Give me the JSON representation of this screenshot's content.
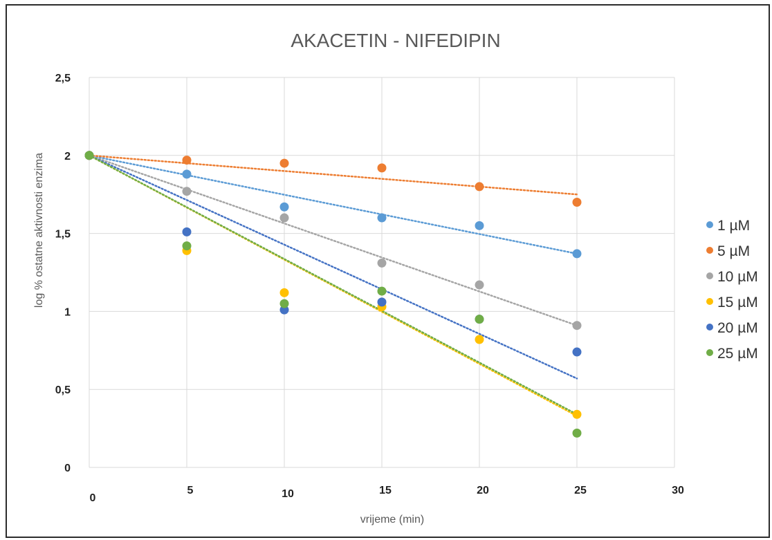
{
  "chart_data": {
    "type": "scatter",
    "title": "AKACETIN - NIFEDIPIN",
    "xlabel": "vrijeme (min)",
    "ylabel": "log % ostatne aktivnosti enzima",
    "xlim": [
      0,
      30
    ],
    "ylim": [
      0,
      2.5
    ],
    "x_ticks": [
      "0",
      "5",
      "10",
      "15",
      "20",
      "25",
      "30"
    ],
    "y_ticks": [
      "0",
      "0,5",
      "1",
      "1,5",
      "2",
      "2,5"
    ],
    "grid": true,
    "legend_position": "right",
    "trendline": "linear, dotted",
    "series": [
      {
        "name": "1 µM",
        "color": "#5b9bd5",
        "x": [
          0,
          5,
          10,
          15,
          20,
          25
        ],
        "y": [
          2.0,
          1.88,
          1.67,
          1.6,
          1.55,
          1.37
        ],
        "trend": [
          2.0,
          1.37
        ]
      },
      {
        "name": "5 µM",
        "color": "#ed7d31",
        "x": [
          0,
          5,
          10,
          15,
          20,
          25
        ],
        "y": [
          2.0,
          1.97,
          1.95,
          1.92,
          1.8,
          1.7
        ],
        "trend": [
          2.0,
          1.75
        ]
      },
      {
        "name": "10 µM",
        "color": "#a5a5a5",
        "x": [
          0,
          5,
          10,
          15,
          20,
          25
        ],
        "y": [
          2.0,
          1.77,
          1.6,
          1.31,
          1.17,
          0.91
        ],
        "trend": [
          2.0,
          0.91
        ]
      },
      {
        "name": "15 µM",
        "color": "#ffc000",
        "x": [
          0,
          5,
          10,
          15,
          20,
          25
        ],
        "y": [
          2.0,
          1.39,
          1.12,
          1.03,
          0.82,
          0.34
        ],
        "trend": [
          2.0,
          0.33
        ]
      },
      {
        "name": "20 µM",
        "color": "#4472c4",
        "x": [
          0,
          5,
          10,
          15,
          20,
          25
        ],
        "y": [
          2.0,
          1.51,
          1.01,
          1.06,
          0.95,
          0.74
        ],
        "trend": [
          2.0,
          0.57
        ]
      },
      {
        "name": "25 µM",
        "color": "#70ad47",
        "x": [
          0,
          5,
          10,
          15,
          20,
          25
        ],
        "y": [
          2.0,
          1.42,
          1.05,
          1.13,
          0.95,
          0.22
        ],
        "trend": [
          2.0,
          0.34
        ]
      }
    ]
  }
}
